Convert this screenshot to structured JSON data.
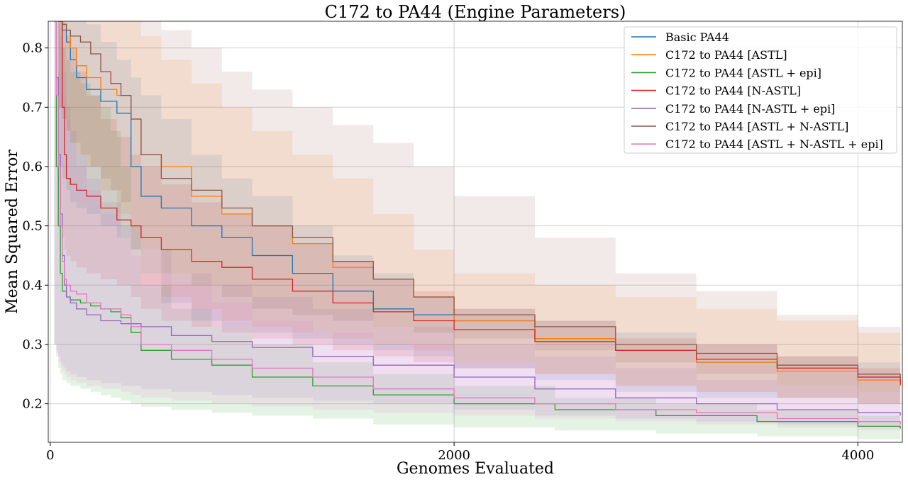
{
  "chart_data": {
    "type": "line",
    "title": "C172 to PA44 (Engine Parameters)",
    "xlabel": "Genomes Evaluated",
    "ylabel": "Mean Squared Error",
    "xlim": [
      -10,
      4220
    ],
    "ylim": [
      0.135,
      0.845
    ],
    "xticks": [
      0,
      2000,
      4000
    ],
    "yticks": [
      0.2,
      0.3,
      0.4,
      0.5,
      0.6,
      0.7,
      0.8
    ],
    "x_tick_labels": [
      "0",
      "2000",
      "4000"
    ],
    "y_tick_labels": [
      "0.2",
      "0.3",
      "0.4",
      "0.5",
      "0.6",
      "0.7",
      "0.8"
    ],
    "grid": true,
    "legend_position": "top-right",
    "band": "shaded min–max range per series",
    "series": [
      {
        "name": "Basic PA44",
        "color": "#1f77b4",
        "x": [
          40,
          60,
          80,
          100,
          130,
          180,
          250,
          330,
          400,
          450,
          550,
          700,
          850,
          1000,
          1200,
          1400,
          1600,
          1800,
          2000,
          2400,
          2800,
          3200,
          3600,
          4000,
          4210
        ],
        "y": [
          0.845,
          0.83,
          0.81,
          0.78,
          0.75,
          0.73,
          0.71,
          0.69,
          0.6,
          0.55,
          0.53,
          0.5,
          0.48,
          0.45,
          0.42,
          0.39,
          0.36,
          0.35,
          0.34,
          0.31,
          0.29,
          0.27,
          0.26,
          0.245,
          0.235
        ],
        "lower": [
          0.6,
          0.58,
          0.56,
          0.54,
          0.53,
          0.52,
          0.5,
          0.48,
          0.46,
          0.42,
          0.37,
          0.34,
          0.33,
          0.32,
          0.31,
          0.3,
          0.29,
          0.28,
          0.26,
          0.24,
          0.22,
          0.21,
          0.21,
          0.2,
          0.2
        ],
        "upper": [
          0.845,
          0.845,
          0.845,
          0.845,
          0.845,
          0.84,
          0.81,
          0.78,
          0.75,
          0.72,
          0.68,
          0.62,
          0.58,
          0.55,
          0.5,
          0.45,
          0.42,
          0.38,
          0.36,
          0.34,
          0.32,
          0.3,
          0.28,
          0.27,
          0.26
        ]
      },
      {
        "name": "C172 to PA44 [ASTL]",
        "color": "#ff7f0e",
        "x": [
          40,
          60,
          80,
          100,
          130,
          180,
          250,
          330,
          400,
          450,
          550,
          700,
          850,
          1000,
          1200,
          1400,
          1600,
          1800,
          2000,
          2400,
          2800,
          3200,
          3600,
          4000,
          4210
        ],
        "y": [
          0.845,
          0.84,
          0.83,
          0.8,
          0.77,
          0.75,
          0.73,
          0.72,
          0.68,
          0.62,
          0.6,
          0.55,
          0.52,
          0.5,
          0.47,
          0.43,
          0.41,
          0.38,
          0.34,
          0.31,
          0.29,
          0.27,
          0.255,
          0.24,
          0.23
        ],
        "lower": [
          0.7,
          0.68,
          0.66,
          0.64,
          0.62,
          0.6,
          0.56,
          0.52,
          0.46,
          0.4,
          0.38,
          0.36,
          0.34,
          0.33,
          0.32,
          0.31,
          0.3,
          0.29,
          0.27,
          0.25,
          0.23,
          0.22,
          0.21,
          0.2,
          0.2
        ],
        "upper": [
          0.845,
          0.845,
          0.845,
          0.845,
          0.845,
          0.845,
          0.845,
          0.845,
          0.845,
          0.82,
          0.78,
          0.74,
          0.7,
          0.66,
          0.62,
          0.58,
          0.52,
          0.46,
          0.42,
          0.4,
          0.38,
          0.36,
          0.34,
          0.32,
          0.3
        ]
      },
      {
        "name": "C172 to PA44 [ASTL + epi]",
        "color": "#2ca02c",
        "x": [
          20,
          30,
          40,
          50,
          60,
          80,
          100,
          150,
          200,
          250,
          300,
          350,
          400,
          450,
          600,
          800,
          1000,
          1300,
          1600,
          2000,
          2500,
          3000,
          3500,
          4000,
          4210
        ],
        "y": [
          0.845,
          0.6,
          0.5,
          0.42,
          0.39,
          0.38,
          0.375,
          0.37,
          0.365,
          0.36,
          0.355,
          0.345,
          0.32,
          0.29,
          0.275,
          0.265,
          0.245,
          0.23,
          0.215,
          0.2,
          0.19,
          0.18,
          0.17,
          0.162,
          0.158
        ],
        "lower": [
          0.3,
          0.28,
          0.26,
          0.25,
          0.24,
          0.235,
          0.23,
          0.225,
          0.22,
          0.215,
          0.21,
          0.205,
          0.2,
          0.195,
          0.19,
          0.185,
          0.18,
          0.175,
          0.165,
          0.16,
          0.155,
          0.15,
          0.145,
          0.14,
          0.14
        ],
        "upper": [
          0.845,
          0.845,
          0.845,
          0.845,
          0.8,
          0.78,
          0.76,
          0.74,
          0.72,
          0.7,
          0.66,
          0.6,
          0.5,
          0.4,
          0.36,
          0.33,
          0.3,
          0.27,
          0.25,
          0.23,
          0.21,
          0.2,
          0.19,
          0.18,
          0.17
        ]
      },
      {
        "name": "C172 to PA44 [N-ASTL]",
        "color": "#d62728",
        "x": [
          40,
          60,
          70,
          80,
          100,
          130,
          180,
          250,
          330,
          400,
          450,
          550,
          700,
          850,
          1000,
          1200,
          1400,
          1600,
          1800,
          2000,
          2400,
          2800,
          3200,
          3600,
          4000,
          4210
        ],
        "y": [
          0.845,
          0.7,
          0.62,
          0.58,
          0.57,
          0.56,
          0.55,
          0.53,
          0.51,
          0.5,
          0.48,
          0.46,
          0.44,
          0.43,
          0.41,
          0.39,
          0.37,
          0.355,
          0.34,
          0.325,
          0.305,
          0.29,
          0.275,
          0.26,
          0.245,
          0.232
        ],
        "lower": [
          0.5,
          0.48,
          0.46,
          0.45,
          0.44,
          0.43,
          0.42,
          0.41,
          0.4,
          0.38,
          0.36,
          0.34,
          0.33,
          0.32,
          0.31,
          0.3,
          0.29,
          0.28,
          0.27,
          0.26,
          0.25,
          0.23,
          0.22,
          0.21,
          0.2,
          0.2
        ],
        "upper": [
          0.845,
          0.845,
          0.84,
          0.82,
          0.8,
          0.76,
          0.72,
          0.68,
          0.65,
          0.62,
          0.6,
          0.57,
          0.54,
          0.52,
          0.5,
          0.47,
          0.44,
          0.41,
          0.39,
          0.36,
          0.34,
          0.31,
          0.3,
          0.28,
          0.26,
          0.25
        ]
      },
      {
        "name": "C172 to PA44 [N-ASTL + epi]",
        "color": "#9467bd",
        "x": [
          20,
          30,
          40,
          50,
          60,
          70,
          80,
          100,
          130,
          180,
          250,
          350,
          450,
          600,
          800,
          1000,
          1300,
          1600,
          2000,
          2400,
          2800,
          3200,
          3600,
          4000,
          4210
        ],
        "y": [
          0.845,
          0.75,
          0.62,
          0.52,
          0.45,
          0.4,
          0.38,
          0.37,
          0.36,
          0.35,
          0.34,
          0.335,
          0.33,
          0.315,
          0.305,
          0.295,
          0.28,
          0.265,
          0.245,
          0.225,
          0.21,
          0.2,
          0.19,
          0.185,
          0.18
        ],
        "lower": [
          0.3,
          0.29,
          0.28,
          0.27,
          0.265,
          0.26,
          0.255,
          0.25,
          0.245,
          0.24,
          0.235,
          0.23,
          0.225,
          0.22,
          0.215,
          0.21,
          0.205,
          0.2,
          0.19,
          0.18,
          0.175,
          0.17,
          0.165,
          0.16,
          0.16
        ],
        "upper": [
          0.845,
          0.845,
          0.84,
          0.82,
          0.8,
          0.76,
          0.7,
          0.66,
          0.62,
          0.58,
          0.54,
          0.5,
          0.46,
          0.42,
          0.4,
          0.38,
          0.36,
          0.33,
          0.3,
          0.28,
          0.26,
          0.24,
          0.23,
          0.22,
          0.21
        ]
      },
      {
        "name": "C172 to PA44 [ASTL + N-ASTL]",
        "color": "#8c564b",
        "x": [
          40,
          60,
          80,
          100,
          150,
          200,
          250,
          300,
          350,
          400,
          450,
          550,
          700,
          850,
          1000,
          1200,
          1400,
          1600,
          1800,
          2000,
          2400,
          2800,
          3200,
          3600,
          4000,
          4210
        ],
        "y": [
          0.845,
          0.84,
          0.83,
          0.82,
          0.81,
          0.79,
          0.76,
          0.74,
          0.72,
          0.68,
          0.62,
          0.58,
          0.56,
          0.53,
          0.5,
          0.48,
          0.44,
          0.41,
          0.38,
          0.35,
          0.33,
          0.3,
          0.285,
          0.265,
          0.25,
          0.24
        ],
        "lower": [
          0.7,
          0.68,
          0.66,
          0.64,
          0.62,
          0.6,
          0.58,
          0.56,
          0.54,
          0.5,
          0.46,
          0.42,
          0.4,
          0.38,
          0.36,
          0.35,
          0.34,
          0.33,
          0.32,
          0.31,
          0.29,
          0.27,
          0.25,
          0.23,
          0.22,
          0.21
        ],
        "upper": [
          0.845,
          0.845,
          0.845,
          0.845,
          0.845,
          0.845,
          0.845,
          0.845,
          0.845,
          0.845,
          0.845,
          0.83,
          0.8,
          0.76,
          0.73,
          0.7,
          0.67,
          0.64,
          0.6,
          0.55,
          0.48,
          0.42,
          0.39,
          0.35,
          0.33,
          0.31
        ]
      },
      {
        "name": "C172 to PA44 [ASTL + N-ASTL + epi]",
        "color": "#e377c2",
        "x": [
          20,
          30,
          40,
          50,
          60,
          70,
          80,
          100,
          130,
          180,
          250,
          350,
          400,
          450,
          600,
          800,
          1000,
          1300,
          1600,
          2000,
          2400,
          2800,
          3200,
          3600,
          4000,
          4210
        ],
        "y": [
          0.845,
          0.72,
          0.6,
          0.5,
          0.44,
          0.41,
          0.4,
          0.39,
          0.385,
          0.37,
          0.36,
          0.35,
          0.33,
          0.3,
          0.29,
          0.275,
          0.26,
          0.245,
          0.225,
          0.21,
          0.2,
          0.19,
          0.185,
          0.175,
          0.17,
          0.165
        ],
        "lower": [
          0.3,
          0.285,
          0.27,
          0.26,
          0.255,
          0.25,
          0.245,
          0.24,
          0.235,
          0.23,
          0.225,
          0.22,
          0.215,
          0.21,
          0.205,
          0.2,
          0.195,
          0.19,
          0.185,
          0.18,
          0.175,
          0.17,
          0.165,
          0.16,
          0.155,
          0.155
        ],
        "upper": [
          0.845,
          0.845,
          0.82,
          0.8,
          0.76,
          0.72,
          0.68,
          0.64,
          0.6,
          0.56,
          0.52,
          0.48,
          0.45,
          0.42,
          0.4,
          0.37,
          0.34,
          0.32,
          0.3,
          0.27,
          0.25,
          0.23,
          0.22,
          0.21,
          0.2,
          0.19
        ]
      }
    ]
  }
}
